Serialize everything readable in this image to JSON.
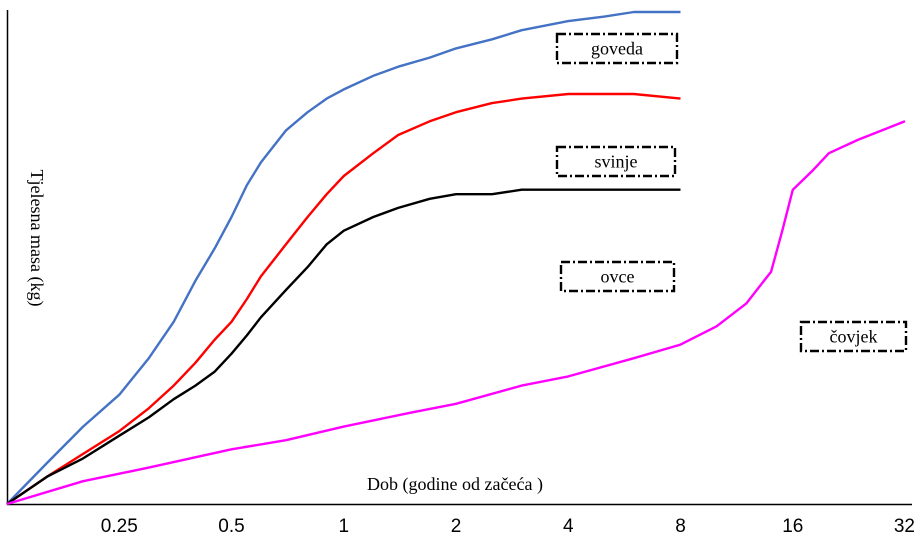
{
  "chart_data": {
    "type": "line",
    "title": "",
    "xlabel": "Dob (godine od začeća )",
    "ylabel": "Tjelesna masa (kg)",
    "x_scale": "log2",
    "x_ticks": [
      {
        "value": 0.25,
        "label": "0.25"
      },
      {
        "value": 0.5,
        "label": "0.5"
      },
      {
        "value": 1,
        "label": "1"
      },
      {
        "value": 2,
        "label": "2"
      },
      {
        "value": 4,
        "label": "4"
      },
      {
        "value": 8,
        "label": "8"
      },
      {
        "value": 16,
        "label": "16"
      },
      {
        "value": 32,
        "label": "32"
      }
    ],
    "y_ticks_shown": false,
    "series": [
      {
        "name": "goveda",
        "color": "#4472c4",
        "points": [
          [
            0.125,
            0.0
          ],
          [
            0.16,
            0.09
          ],
          [
            0.2,
            0.17
          ],
          [
            0.25,
            0.24
          ],
          [
            0.3,
            0.32
          ],
          [
            0.35,
            0.4
          ],
          [
            0.4,
            0.49
          ],
          [
            0.45,
            0.56
          ],
          [
            0.5,
            0.63
          ],
          [
            0.55,
            0.7
          ],
          [
            0.6,
            0.75
          ],
          [
            0.7,
            0.82
          ],
          [
            0.8,
            0.86
          ],
          [
            0.9,
            0.89
          ],
          [
            1.0,
            0.91
          ],
          [
            1.2,
            0.94
          ],
          [
            1.4,
            0.96
          ],
          [
            1.7,
            0.98
          ],
          [
            2.0,
            1.0
          ],
          [
            2.5,
            1.02
          ],
          [
            3.0,
            1.04
          ],
          [
            4.0,
            1.06
          ],
          [
            5.0,
            1.07
          ],
          [
            6.0,
            1.08
          ],
          [
            8.0,
            1.08
          ]
        ]
      },
      {
        "name": "svinje",
        "color": "#ff0000",
        "points": [
          [
            0.125,
            0.0
          ],
          [
            0.16,
            0.06
          ],
          [
            0.2,
            0.11
          ],
          [
            0.25,
            0.16
          ],
          [
            0.3,
            0.21
          ],
          [
            0.35,
            0.26
          ],
          [
            0.4,
            0.31
          ],
          [
            0.45,
            0.36
          ],
          [
            0.5,
            0.4
          ],
          [
            0.55,
            0.45
          ],
          [
            0.6,
            0.5
          ],
          [
            0.7,
            0.57
          ],
          [
            0.8,
            0.63
          ],
          [
            0.9,
            0.68
          ],
          [
            1.0,
            0.72
          ],
          [
            1.2,
            0.77
          ],
          [
            1.4,
            0.81
          ],
          [
            1.7,
            0.84
          ],
          [
            2.0,
            0.86
          ],
          [
            2.5,
            0.88
          ],
          [
            3.0,
            0.89
          ],
          [
            4.0,
            0.9
          ],
          [
            5.0,
            0.9
          ],
          [
            6.0,
            0.9
          ],
          [
            8.0,
            0.89
          ]
        ]
      },
      {
        "name": "ovce",
        "color": "#000000",
        "points": [
          [
            0.125,
            0.0
          ],
          [
            0.16,
            0.06
          ],
          [
            0.2,
            0.1
          ],
          [
            0.25,
            0.15
          ],
          [
            0.3,
            0.19
          ],
          [
            0.35,
            0.23
          ],
          [
            0.4,
            0.26
          ],
          [
            0.45,
            0.29
          ],
          [
            0.5,
            0.33
          ],
          [
            0.55,
            0.37
          ],
          [
            0.6,
            0.41
          ],
          [
            0.7,
            0.47
          ],
          [
            0.8,
            0.52
          ],
          [
            0.9,
            0.57
          ],
          [
            1.0,
            0.6
          ],
          [
            1.2,
            0.63
          ],
          [
            1.4,
            0.65
          ],
          [
            1.7,
            0.67
          ],
          [
            2.0,
            0.68
          ],
          [
            2.5,
            0.68
          ],
          [
            3.0,
            0.69
          ],
          [
            4.0,
            0.69
          ],
          [
            5.0,
            0.69
          ],
          [
            6.0,
            0.69
          ],
          [
            8.0,
            0.69
          ]
        ]
      },
      {
        "name": "čovjek",
        "color": "#ff00ff",
        "points": [
          [
            0.125,
            0.0
          ],
          [
            0.2,
            0.05
          ],
          [
            0.3,
            0.08
          ],
          [
            0.5,
            0.12
          ],
          [
            0.7,
            0.14
          ],
          [
            1.0,
            0.17
          ],
          [
            1.5,
            0.2
          ],
          [
            2.0,
            0.22
          ],
          [
            3.0,
            0.26
          ],
          [
            4.0,
            0.28
          ],
          [
            6.0,
            0.32
          ],
          [
            8.0,
            0.35
          ],
          [
            10.0,
            0.39
          ],
          [
            12.0,
            0.44
          ],
          [
            14.0,
            0.51
          ],
          [
            15.0,
            0.6
          ],
          [
            16.0,
            0.69
          ],
          [
            18.0,
            0.73
          ],
          [
            20.0,
            0.77
          ],
          [
            24.0,
            0.8
          ],
          [
            32.0,
            0.84
          ]
        ]
      }
    ],
    "series_labels": [
      "goveda",
      "svinje",
      "ovce",
      "čovjek"
    ]
  }
}
